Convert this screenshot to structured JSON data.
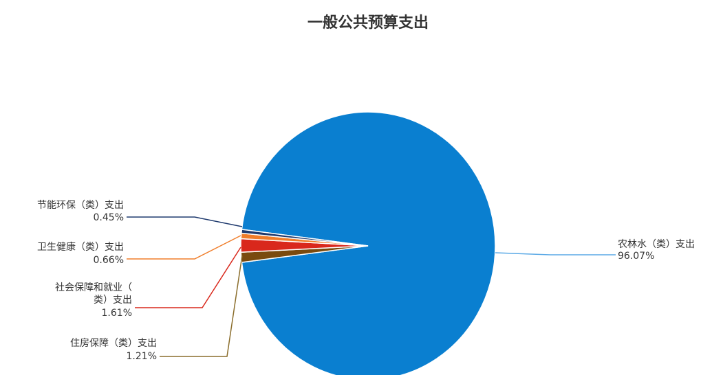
{
  "chart_data": {
    "type": "pie",
    "title": "一般公共预算支出",
    "slices": [
      {
        "name": "农林水（类）支出",
        "value_label": "96.07%",
        "value": 96.07,
        "color": "#0a7fd0",
        "line_color": "#5aa9e6"
      },
      {
        "name": "住房保障（类）支出",
        "value_label": "1.21%",
        "value": 1.21,
        "color": "#7a4a0e",
        "line_color": "#8a6d2b"
      },
      {
        "name": "社会保障和就业（类）支出",
        "value_label": "1.61%",
        "value": 1.61,
        "color": "#d9281c",
        "line_color": "#d9281c"
      },
      {
        "name": "卫生健康（类）支出",
        "value_label": "0.66%",
        "value": 0.66,
        "color": "#f07d2a",
        "line_color": "#f07d2a"
      },
      {
        "name": "节能环保（类）支出",
        "value_label": "0.45%",
        "value": 0.45,
        "color": "#1f3a6e",
        "line_color": "#1f3a6e"
      }
    ],
    "labels": {
      "nonglin_1": "农林水（类）支出",
      "nonglin_2": "96.07%",
      "zhufang_1": "住房保障（类）支出",
      "zhufang_2": "1.21%",
      "shebao_1": "社会保障和就业（",
      "shebao_2": "类）支出",
      "shebao_3": "1.61%",
      "weisheng_1": "卫生健康（类）支出",
      "weisheng_2": "0.66%",
      "jieneng_1": "节能环保（类）支出",
      "jieneng_2": "0.45%"
    }
  }
}
